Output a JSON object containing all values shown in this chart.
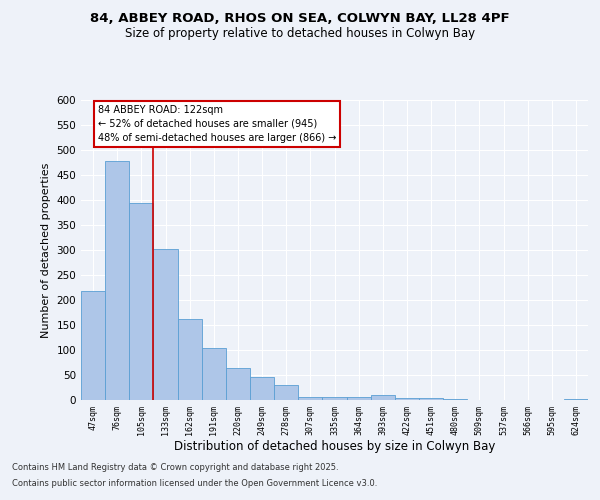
{
  "title": "84, ABBEY ROAD, RHOS ON SEA, COLWYN BAY, LL28 4PF",
  "subtitle": "Size of property relative to detached houses in Colwyn Bay",
  "xlabel": "Distribution of detached houses by size in Colwyn Bay",
  "ylabel": "Number of detached properties",
  "categories": [
    "47sqm",
    "76sqm",
    "105sqm",
    "133sqm",
    "162sqm",
    "191sqm",
    "220sqm",
    "249sqm",
    "278sqm",
    "307sqm",
    "335sqm",
    "364sqm",
    "393sqm",
    "422sqm",
    "451sqm",
    "480sqm",
    "509sqm",
    "537sqm",
    "566sqm",
    "595sqm",
    "624sqm"
  ],
  "values": [
    218,
    478,
    395,
    303,
    163,
    105,
    64,
    47,
    30,
    7,
    7,
    7,
    10,
    5,
    4,
    2,
    1,
    1,
    1,
    1,
    2
  ],
  "bar_color": "#aec6e8",
  "bar_edge_color": "#5a9fd4",
  "vline_color": "#cc0000",
  "vline_x": 2.5,
  "annotation_title": "84 ABBEY ROAD: 122sqm",
  "annotation_line1": "← 52% of detached houses are smaller (945)",
  "annotation_line2": "48% of semi-detached houses are larger (866) →",
  "annotation_box_color": "#cc0000",
  "ylim": [
    0,
    600
  ],
  "yticks": [
    0,
    50,
    100,
    150,
    200,
    250,
    300,
    350,
    400,
    450,
    500,
    550,
    600
  ],
  "footer_line1": "Contains HM Land Registry data © Crown copyright and database right 2025.",
  "footer_line2": "Contains public sector information licensed under the Open Government Licence v3.0.",
  "background_color": "#eef2f9",
  "grid_color": "#ffffff"
}
